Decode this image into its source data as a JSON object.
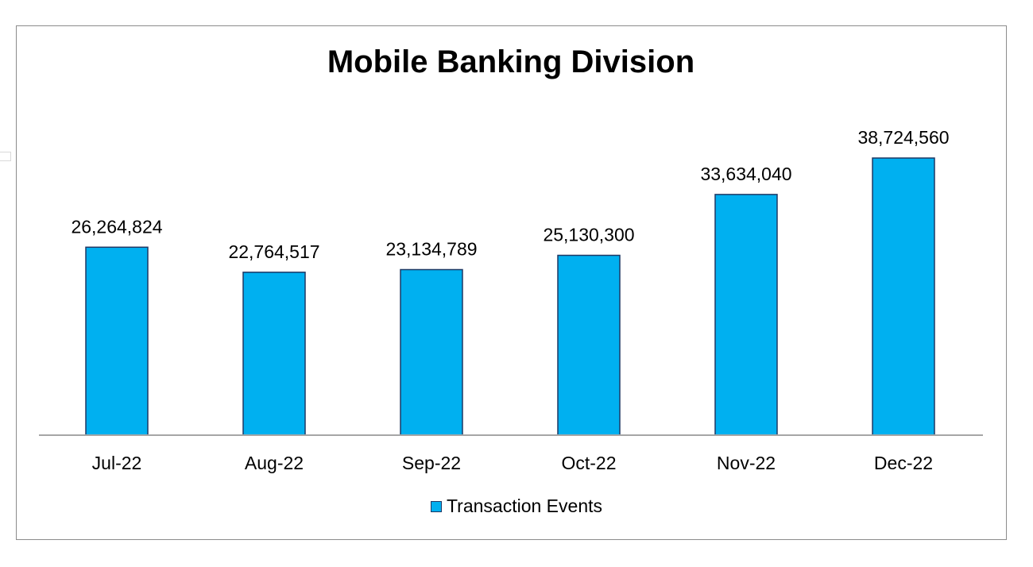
{
  "chart_data": {
    "type": "bar",
    "title": "Mobile Banking Division",
    "categories": [
      "Jul-22",
      "Aug-22",
      "Sep-22",
      "Oct-22",
      "Nov-22",
      "Dec-22"
    ],
    "series": [
      {
        "name": "Transaction Events",
        "values": [
          26264824,
          22764517,
          23134789,
          25130300,
          33634040,
          38724560
        ],
        "labels": [
          "26,264,824",
          "22,764,517",
          "23,134,789",
          "25,130,300",
          "33,634,040",
          "38,724,560"
        ],
        "color": "#00b0f0"
      }
    ],
    "bar_outline_color": "#1f3864",
    "ylim": [
      0,
      45000000
    ],
    "grid": false,
    "legend": "bottom"
  }
}
